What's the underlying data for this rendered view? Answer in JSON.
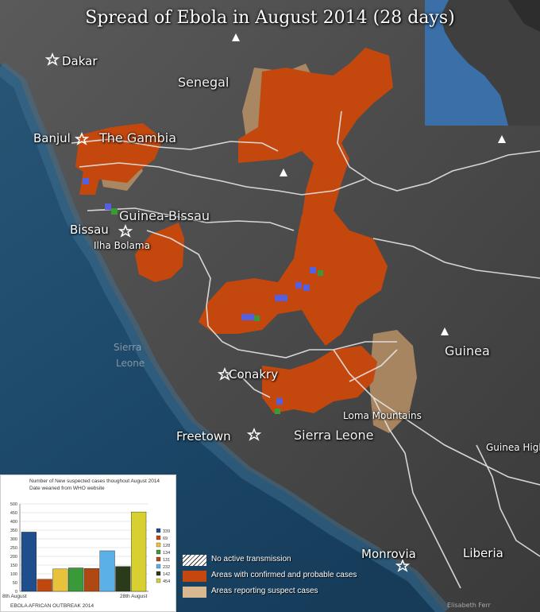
{
  "title": "Spread of Ebola in August 2014 (28 days)",
  "places": {
    "dakar": "Dakar",
    "senegal": "Senegal",
    "banjul": "Banjul",
    "gambia": "The Gambia",
    "guinea_bissau": "Guinea-Bissau",
    "bissau": "Bissau",
    "ilha_bolama": "Ilha Bolama",
    "conakry": "Conakry",
    "freetown": "Freetown",
    "sierra_leone": "Sierra Leone",
    "loma_mountains": "Loma Mountains",
    "guinea": "Guinea",
    "guinea_high": "Guinea High",
    "monrovia": "Monrovia",
    "liberia": "Liberia",
    "sierra_faint": "Sierra",
    "leone_faint": "Leone"
  },
  "legend": {
    "no_transmission": "No active transmission",
    "confirmed": "Areas with confirmed and probable cases",
    "suspect": "Areas reporting suspect cases"
  },
  "colors": {
    "confirmed": "#c4480e",
    "suspect": "#b89066",
    "sea": "#1f4a6a",
    "land": "#4a4a4a",
    "border": "#e6e6e6"
  },
  "credit": "Elisabeth Ferr",
  "chart_data": {
    "type": "bar",
    "title": "Number of New suspected cases thoughout August 2014",
    "subtitle": "Date weaned from WHO website",
    "caption": "EBOLA AFRICAN OUTBREAK 2014",
    "x_start_label": "8th August",
    "x_end_label": "28th August",
    "ylim": [
      0,
      500
    ],
    "yticks": [
      0,
      50,
      100,
      150,
      200,
      250,
      300,
      350,
      400,
      450,
      500
    ],
    "grid": true,
    "legend_position": "right",
    "values": [
      339,
      69,
      128,
      134,
      131,
      232,
      142,
      454
    ],
    "colors": [
      "#1f4e8c",
      "#c0470e",
      "#e8c23a",
      "#3a9a3a",
      "#b04814",
      "#5bb0e8",
      "#2a3a1a",
      "#d8d030"
    ]
  }
}
